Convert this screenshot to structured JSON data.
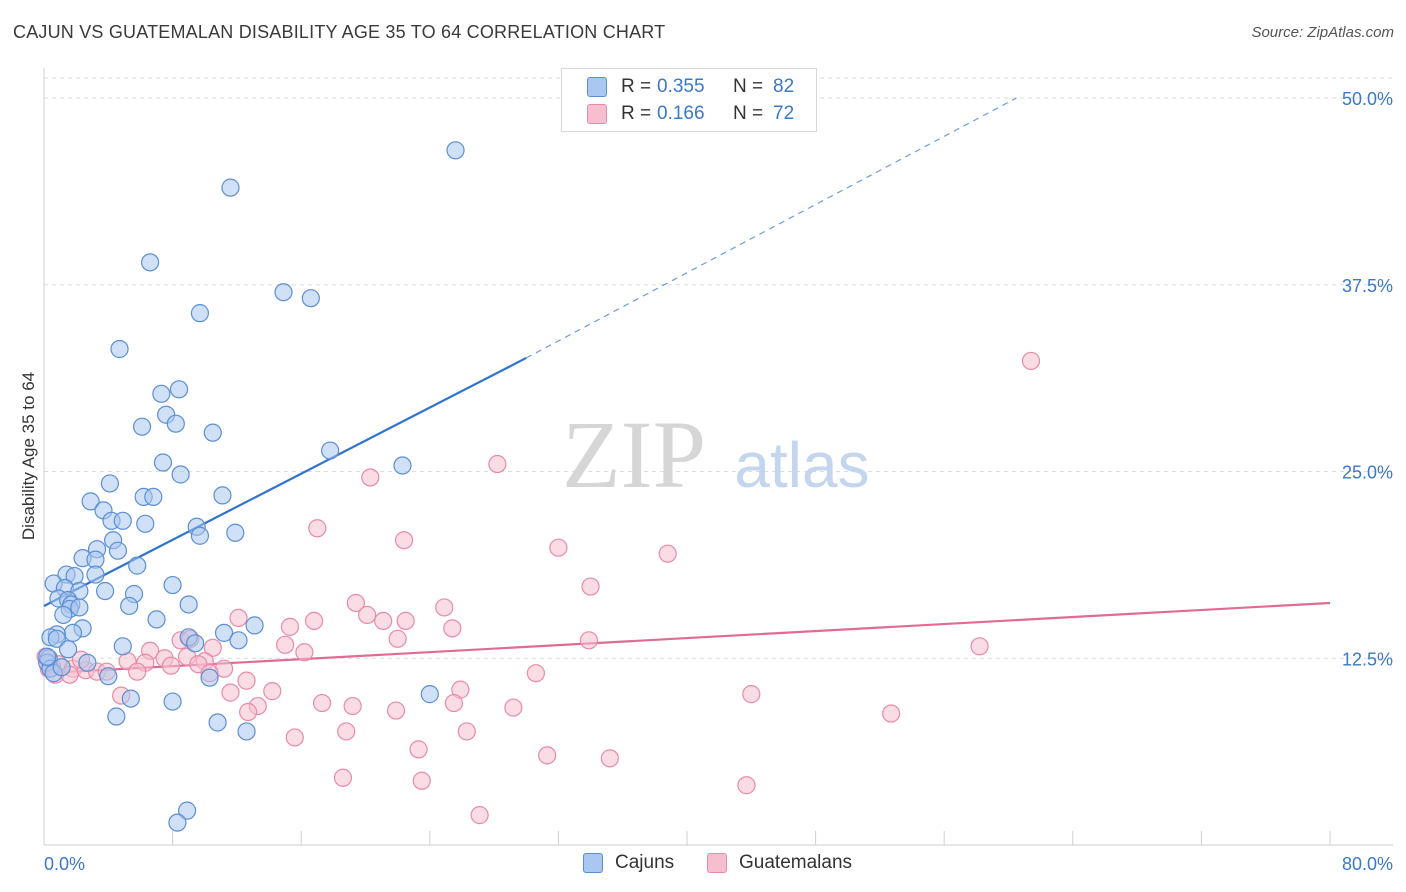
{
  "title": "CAJUN VS GUATEMALAN DISABILITY AGE 35 TO 64 CORRELATION CHART",
  "source": "Source: ZipAtlas.com",
  "watermark": {
    "zip": "ZIP",
    "atlas": "atlas"
  },
  "legend": {
    "cajuns": {
      "r_label": "R =",
      "r_value": "0.355",
      "n_label": "N =",
      "n_value": "82"
    },
    "guatemalans": {
      "r_label": "R =",
      "r_value": "0.166",
      "n_label": "N =",
      "n_value": "72"
    }
  },
  "bottom_legend": {
    "cajuns": "Cajuns",
    "guatemalans": "Guatemalans"
  },
  "colors": {
    "blue_fill": "#a9c7ef",
    "blue_stroke": "#5b8fd4",
    "blue_line": "#2f74d0",
    "pink_fill": "#f5bfcf",
    "pink_stroke": "#e98aa8",
    "pink_line": "#e06c95",
    "axis_label": "#3a78c9",
    "grid": "#dcdcdc"
  },
  "chart_data": {
    "type": "scatter",
    "title": "CAJUN VS GUATEMALAN DISABILITY AGE 35 TO 64 CORRELATION CHART",
    "xlabel": "",
    "ylabel": "Disability Age 35 to 64",
    "xlim": [
      0,
      80
    ],
    "ylim": [
      0,
      50
    ],
    "x_tick_labels": [
      {
        "value": 0,
        "label": "0.0%"
      },
      {
        "value": 80,
        "label": "80.0%"
      }
    ],
    "y_tick_labels": [
      {
        "value": 12.5,
        "label": "12.5%"
      },
      {
        "value": 25.0,
        "label": "25.0%"
      },
      {
        "value": 37.5,
        "label": "37.5%"
      },
      {
        "value": 50.0,
        "label": "50.0%"
      }
    ],
    "series": [
      {
        "name": "Cajuns",
        "R": 0.355,
        "N": 82,
        "trend": {
          "x0": 0,
          "y0": 16.0,
          "x1": 30,
          "y1": 32.6,
          "dash_x2": 60.5,
          "dash_y2": 50.0
        },
        "points": [
          [
            25.6,
            46.5
          ],
          [
            11.6,
            44.0
          ],
          [
            6.6,
            39.0
          ],
          [
            14.9,
            37.0
          ],
          [
            16.6,
            36.6
          ],
          [
            9.7,
            35.6
          ],
          [
            4.7,
            33.2
          ],
          [
            8.4,
            30.5
          ],
          [
            7.3,
            30.2
          ],
          [
            7.6,
            28.8
          ],
          [
            6.1,
            28.0
          ],
          [
            8.2,
            28.2
          ],
          [
            10.5,
            27.6
          ],
          [
            17.8,
            26.4
          ],
          [
            7.4,
            25.6
          ],
          [
            8.5,
            24.8
          ],
          [
            22.3,
            25.4
          ],
          [
            4.1,
            24.2
          ],
          [
            11.1,
            23.4
          ],
          [
            6.2,
            23.3
          ],
          [
            6.8,
            23.3
          ],
          [
            2.9,
            23.0
          ],
          [
            3.7,
            22.4
          ],
          [
            4.2,
            21.7
          ],
          [
            4.9,
            21.7
          ],
          [
            6.3,
            21.5
          ],
          [
            9.5,
            21.3
          ],
          [
            9.7,
            20.7
          ],
          [
            11.9,
            20.9
          ],
          [
            4.3,
            20.4
          ],
          [
            3.3,
            19.8
          ],
          [
            4.6,
            19.7
          ],
          [
            2.4,
            19.2
          ],
          [
            3.2,
            19.1
          ],
          [
            5.8,
            18.7
          ],
          [
            1.4,
            18.1
          ],
          [
            1.9,
            18.0
          ],
          [
            3.2,
            18.1
          ],
          [
            0.6,
            17.5
          ],
          [
            8.0,
            17.4
          ],
          [
            1.3,
            17.2
          ],
          [
            2.2,
            17.0
          ],
          [
            3.8,
            17.0
          ],
          [
            5.6,
            16.8
          ],
          [
            0.9,
            16.5
          ],
          [
            1.5,
            16.4
          ],
          [
            9.0,
            16.1
          ],
          [
            1.7,
            16.1
          ],
          [
            5.3,
            16.0
          ],
          [
            1.6,
            15.8
          ],
          [
            2.2,
            15.9
          ],
          [
            1.2,
            15.4
          ],
          [
            7.0,
            15.1
          ],
          [
            13.1,
            14.7
          ],
          [
            2.4,
            14.5
          ],
          [
            1.8,
            14.2
          ],
          [
            0.8,
            14.1
          ],
          [
            0.4,
            13.9
          ],
          [
            11.2,
            14.2
          ],
          [
            0.8,
            13.8
          ],
          [
            9.0,
            13.9
          ],
          [
            12.1,
            13.7
          ],
          [
            4.9,
            13.3
          ],
          [
            9.4,
            13.5
          ],
          [
            1.5,
            13.1
          ],
          [
            0.3,
            12.5
          ],
          [
            0.2,
            12.2
          ],
          [
            2.7,
            12.2
          ],
          [
            0.4,
            11.8
          ],
          [
            0.6,
            11.5
          ],
          [
            4.0,
            11.3
          ],
          [
            10.3,
            11.2
          ],
          [
            24.0,
            10.1
          ],
          [
            5.4,
            9.8
          ],
          [
            8.0,
            9.6
          ],
          [
            4.5,
            8.6
          ],
          [
            10.8,
            8.2
          ],
          [
            12.6,
            7.6
          ],
          [
            8.9,
            2.3
          ],
          [
            8.3,
            1.5
          ],
          [
            0.2,
            12.6
          ],
          [
            1.1,
            11.9
          ]
        ]
      },
      {
        "name": "Guatemalans",
        "R": 0.166,
        "N": 72,
        "trend": {
          "x0": 0,
          "y0": 11.5,
          "x1": 80,
          "y1": 16.2
        },
        "points": [
          [
            61.4,
            32.4
          ],
          [
            28.2,
            25.5
          ],
          [
            20.3,
            24.6
          ],
          [
            17.0,
            21.2
          ],
          [
            22.4,
            20.4
          ],
          [
            32.0,
            19.9
          ],
          [
            38.8,
            19.5
          ],
          [
            34.0,
            17.3
          ],
          [
            19.4,
            16.2
          ],
          [
            24.9,
            15.9
          ],
          [
            12.1,
            15.2
          ],
          [
            20.1,
            15.4
          ],
          [
            16.8,
            15.0
          ],
          [
            21.1,
            15.0
          ],
          [
            22.5,
            15.0
          ],
          [
            15.3,
            14.6
          ],
          [
            25.4,
            14.5
          ],
          [
            33.9,
            13.7
          ],
          [
            22.0,
            13.8
          ],
          [
            8.5,
            13.7
          ],
          [
            9.1,
            13.8
          ],
          [
            15.0,
            13.4
          ],
          [
            10.5,
            13.2
          ],
          [
            58.2,
            13.3
          ],
          [
            16.2,
            12.9
          ],
          [
            6.6,
            13.0
          ],
          [
            8.9,
            12.6
          ],
          [
            7.5,
            12.5
          ],
          [
            10.0,
            12.3
          ],
          [
            6.3,
            12.2
          ],
          [
            5.2,
            12.3
          ],
          [
            7.9,
            12.0
          ],
          [
            9.6,
            12.1
          ],
          [
            11.2,
            11.8
          ],
          [
            0.9,
            12.1
          ],
          [
            0.5,
            11.9
          ],
          [
            0.3,
            11.8
          ],
          [
            1.8,
            11.8
          ],
          [
            2.6,
            11.7
          ],
          [
            3.3,
            11.6
          ],
          [
            3.9,
            11.6
          ],
          [
            0.7,
            11.4
          ],
          [
            1.6,
            11.4
          ],
          [
            10.3,
            11.5
          ],
          [
            5.8,
            11.6
          ],
          [
            30.6,
            11.5
          ],
          [
            12.6,
            11.0
          ],
          [
            4.8,
            10.0
          ],
          [
            11.6,
            10.2
          ],
          [
            14.2,
            10.3
          ],
          [
            25.9,
            10.4
          ],
          [
            44.0,
            10.1
          ],
          [
            13.3,
            9.3
          ],
          [
            17.3,
            9.5
          ],
          [
            19.2,
            9.3
          ],
          [
            25.5,
            9.5
          ],
          [
            29.2,
            9.2
          ],
          [
            21.9,
            9.0
          ],
          [
            12.7,
            8.9
          ],
          [
            52.7,
            8.8
          ],
          [
            18.8,
            7.6
          ],
          [
            26.3,
            7.6
          ],
          [
            15.6,
            7.2
          ],
          [
            23.3,
            6.4
          ],
          [
            31.3,
            6.0
          ],
          [
            35.2,
            5.8
          ],
          [
            18.6,
            4.5
          ],
          [
            23.5,
            4.3
          ],
          [
            43.7,
            4.0
          ],
          [
            27.1,
            2.0
          ],
          [
            2.3,
            12.4
          ],
          [
            0.1,
            12.6
          ]
        ]
      }
    ]
  }
}
